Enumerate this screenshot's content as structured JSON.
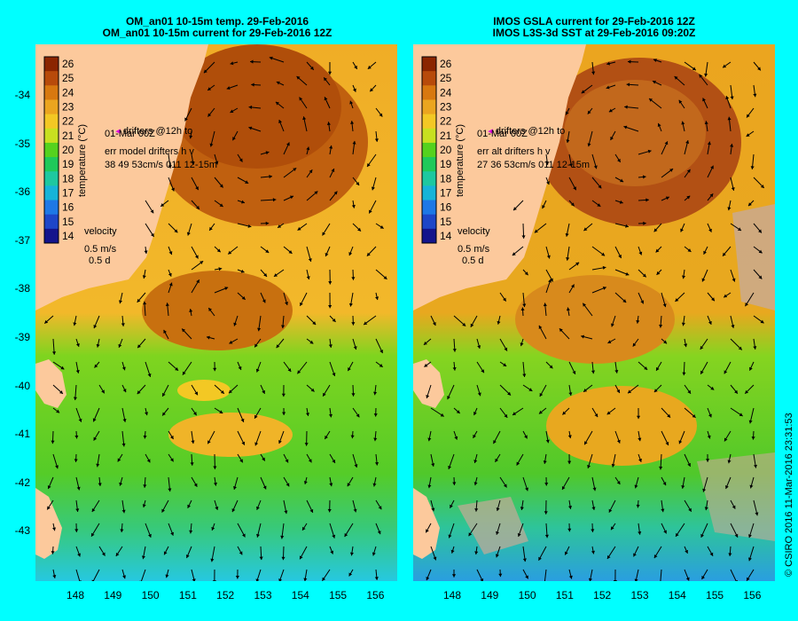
{
  "left_panel": {
    "title_line1": "OM_an01 10-15m temp. 29-Feb-2016",
    "title_line2": "OM_an01 10-15m current for 29-Feb-2016 12Z",
    "drifters_label_1": "drifters @12h to",
    "drifters_label_2": "01-Mar 00Z",
    "err_label_1": "err model drifters h v",
    "err_label_2": "38 49 53cm/s 011 12-15m",
    "velocity_label": "velocity",
    "velocity_scale_1": "0.5 m/s",
    "velocity_scale_2": "0.5 d"
  },
  "right_panel": {
    "title_line1": "IMOS GSLA current for 29-Feb-2016 12Z",
    "title_line2": "IMOS L3S-3d SST at 29-Feb-2016 09:20Z",
    "drifters_label_1": "drifters @12h to",
    "drifters_label_2": "01-Mar 00Z",
    "err_label_1": "err alt drifters h v",
    "err_label_2": "27 36 53cm/s 011 12-15m",
    "velocity_label": "velocity",
    "velocity_scale_1": "0.5 m/s",
    "velocity_scale_2": "0.5 d"
  },
  "colorbar": {
    "label": "temperature (°C)",
    "ticks": [
      "26",
      "25",
      "24",
      "23",
      "22",
      "21",
      "20",
      "19",
      "18",
      "17",
      "16",
      "15",
      "14"
    ],
    "colors": [
      "#8b2500",
      "#b84a0a",
      "#d8780f",
      "#eba51f",
      "#f3c824",
      "#c8e020",
      "#55d21e",
      "#1fc95a",
      "#1ec8a0",
      "#17b4d8",
      "#1e78e6",
      "#1e46c8",
      "#14148c"
    ]
  },
  "y_axis_ticks": [
    "-34",
    "-35",
    "-36",
    "-37",
    "-38",
    "-39",
    "-40",
    "-41",
    "-42",
    "-43"
  ],
  "x_axis_ticks": [
    "148",
    "149",
    "150",
    "151",
    "152",
    "153",
    "154",
    "155",
    "156"
  ],
  "credit": "© CSIRO 2016   11-Mar-2016 23:31:53",
  "colors": {
    "background": "#00ffff",
    "land": "#fcc99c",
    "warm": "#c86a14",
    "mid": "#f0ae28",
    "cool": "#3cc83c",
    "cold": "#28c8e6",
    "cloud": "#c8aa96"
  }
}
